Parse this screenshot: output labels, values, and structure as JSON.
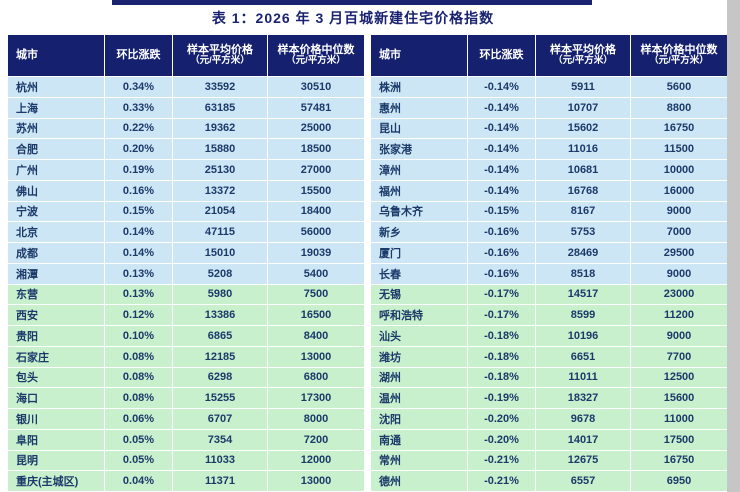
{
  "title": "表 1：2026 年 3 月百城新建住宅价格指数",
  "columns": [
    {
      "label": "城市",
      "sub": ""
    },
    {
      "label": "环比涨跌",
      "sub": ""
    },
    {
      "label": "样本平均价格",
      "sub": "（元/平方米）"
    },
    {
      "label": "样本价格中位数",
      "sub": "（元/平方米）"
    }
  ],
  "colors": {
    "header_bg": "#15216f",
    "title_color": "#1a2370",
    "text_color": "#1b3a6a",
    "row_blue": "#cde6f5",
    "row_green": "#c8f0cd"
  },
  "tables": [
    {
      "name": "rising-cities",
      "rows": [
        {
          "city": "杭州",
          "change": "0.34%",
          "avg": "33592",
          "median": "30510",
          "tone": "blue"
        },
        {
          "city": "上海",
          "change": "0.33%",
          "avg": "63185",
          "median": "57481",
          "tone": "blue"
        },
        {
          "city": "苏州",
          "change": "0.22%",
          "avg": "19362",
          "median": "25000",
          "tone": "blue"
        },
        {
          "city": "合肥",
          "change": "0.20%",
          "avg": "15880",
          "median": "18500",
          "tone": "blue"
        },
        {
          "city": "广州",
          "change": "0.19%",
          "avg": "25130",
          "median": "27000",
          "tone": "blue"
        },
        {
          "city": "佛山",
          "change": "0.16%",
          "avg": "13372",
          "median": "15500",
          "tone": "blue"
        },
        {
          "city": "宁波",
          "change": "0.15%",
          "avg": "21054",
          "median": "18400",
          "tone": "blue"
        },
        {
          "city": "北京",
          "change": "0.14%",
          "avg": "47115",
          "median": "56000",
          "tone": "blue"
        },
        {
          "city": "成都",
          "change": "0.14%",
          "avg": "15010",
          "median": "19039",
          "tone": "blue"
        },
        {
          "city": "湘潭",
          "change": "0.13%",
          "avg": "5208",
          "median": "5400",
          "tone": "blue"
        },
        {
          "city": "东营",
          "change": "0.13%",
          "avg": "5980",
          "median": "7500",
          "tone": "green"
        },
        {
          "city": "西安",
          "change": "0.12%",
          "avg": "13386",
          "median": "16500",
          "tone": "green"
        },
        {
          "city": "贵阳",
          "change": "0.10%",
          "avg": "6865",
          "median": "8400",
          "tone": "green"
        },
        {
          "city": "石家庄",
          "change": "0.08%",
          "avg": "12185",
          "median": "13000",
          "tone": "green"
        },
        {
          "city": "包头",
          "change": "0.08%",
          "avg": "6298",
          "median": "6800",
          "tone": "green"
        },
        {
          "city": "海口",
          "change": "0.08%",
          "avg": "15255",
          "median": "17300",
          "tone": "green"
        },
        {
          "city": "银川",
          "change": "0.06%",
          "avg": "6707",
          "median": "8000",
          "tone": "green"
        },
        {
          "city": "阜阳",
          "change": "0.05%",
          "avg": "7354",
          "median": "7200",
          "tone": "green"
        },
        {
          "city": "昆明",
          "change": "0.05%",
          "avg": "11033",
          "median": "12000",
          "tone": "green"
        },
        {
          "city": "重庆(主城区)",
          "change": "0.04%",
          "avg": "11371",
          "median": "13000",
          "tone": "green"
        }
      ]
    },
    {
      "name": "falling-cities",
      "rows": [
        {
          "city": "株洲",
          "change": "-0.14%",
          "avg": "5911",
          "median": "5600",
          "tone": "blue"
        },
        {
          "city": "惠州",
          "change": "-0.14%",
          "avg": "10707",
          "median": "8800",
          "tone": "blue"
        },
        {
          "city": "昆山",
          "change": "-0.14%",
          "avg": "15602",
          "median": "16750",
          "tone": "blue"
        },
        {
          "city": "张家港",
          "change": "-0.14%",
          "avg": "11016",
          "median": "11500",
          "tone": "blue"
        },
        {
          "city": "漳州",
          "change": "-0.14%",
          "avg": "10681",
          "median": "10000",
          "tone": "blue"
        },
        {
          "city": "福州",
          "change": "-0.14%",
          "avg": "16768",
          "median": "16000",
          "tone": "blue"
        },
        {
          "city": "乌鲁木齐",
          "change": "-0.15%",
          "avg": "8167",
          "median": "9000",
          "tone": "blue"
        },
        {
          "city": "新乡",
          "change": "-0.16%",
          "avg": "5753",
          "median": "7000",
          "tone": "blue"
        },
        {
          "city": "厦门",
          "change": "-0.16%",
          "avg": "28469",
          "median": "29500",
          "tone": "blue"
        },
        {
          "city": "长春",
          "change": "-0.16%",
          "avg": "8518",
          "median": "9000",
          "tone": "blue"
        },
        {
          "city": "无锡",
          "change": "-0.17%",
          "avg": "14517",
          "median": "23000",
          "tone": "green"
        },
        {
          "city": "呼和浩特",
          "change": "-0.17%",
          "avg": "8599",
          "median": "11200",
          "tone": "green"
        },
        {
          "city": "汕头",
          "change": "-0.18%",
          "avg": "10196",
          "median": "9000",
          "tone": "green"
        },
        {
          "city": "潍坊",
          "change": "-0.18%",
          "avg": "6651",
          "median": "7700",
          "tone": "green"
        },
        {
          "city": "湖州",
          "change": "-0.18%",
          "avg": "11011",
          "median": "12500",
          "tone": "green"
        },
        {
          "city": "温州",
          "change": "-0.19%",
          "avg": "18327",
          "median": "15600",
          "tone": "green"
        },
        {
          "city": "沈阳",
          "change": "-0.20%",
          "avg": "9678",
          "median": "11000",
          "tone": "green"
        },
        {
          "city": "南通",
          "change": "-0.20%",
          "avg": "14017",
          "median": "17500",
          "tone": "green"
        },
        {
          "city": "常州",
          "change": "-0.21%",
          "avg": "12675",
          "median": "16750",
          "tone": "green"
        },
        {
          "city": "德州",
          "change": "-0.21%",
          "avg": "6557",
          "median": "6950",
          "tone": "green"
        }
      ]
    }
  ]
}
